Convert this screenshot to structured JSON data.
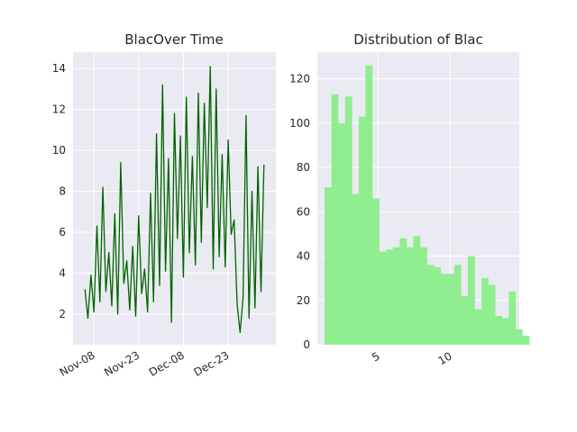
{
  "chart_data": [
    {
      "type": "line",
      "title": "BlacOver Time",
      "xlabel": "",
      "ylabel": "",
      "x_tick_labels": [
        "Nov-08",
        "Nov-23",
        "Dec-08",
        "Dec-23"
      ],
      "x_ticks": [
        "2021-11-08",
        "2021-11-23",
        "2021-12-08",
        "2021-12-23"
      ],
      "x_range": [
        "2021-11-01",
        "2022-01-08"
      ],
      "y_ticks": [
        2,
        4,
        6,
        8,
        10,
        12,
        14
      ],
      "ylim": [
        0.5,
        14.8
      ],
      "grid": true,
      "color": "#006400",
      "series": [
        {
          "x": [
            "2021-11-05",
            "2021-11-06",
            "2021-11-07",
            "2021-11-08",
            "2021-11-09",
            "2021-11-10",
            "2021-11-11",
            "2021-11-12",
            "2021-11-13",
            "2021-11-14",
            "2021-11-15",
            "2021-11-16",
            "2021-11-17",
            "2021-11-18",
            "2021-11-19",
            "2021-11-20",
            "2021-11-21",
            "2021-11-22",
            "2021-11-23",
            "2021-11-24",
            "2021-11-25",
            "2021-11-26",
            "2021-11-27",
            "2021-11-28",
            "2021-11-29",
            "2021-11-30",
            "2021-12-01",
            "2021-12-02",
            "2021-12-03",
            "2021-12-04",
            "2021-12-05",
            "2021-12-06",
            "2021-12-07",
            "2021-12-08",
            "2021-12-09",
            "2021-12-10",
            "2021-12-11",
            "2021-12-12",
            "2021-12-13",
            "2021-12-14",
            "2021-12-15",
            "2021-12-16",
            "2021-12-17",
            "2021-12-18",
            "2021-12-19",
            "2021-12-20",
            "2021-12-21",
            "2021-12-22",
            "2021-12-23",
            "2021-12-24",
            "2021-12-25",
            "2021-12-26",
            "2021-12-27",
            "2021-12-28",
            "2021-12-29",
            "2021-12-30",
            "2021-12-31",
            "2022-01-01",
            "2022-01-02",
            "2022-01-03",
            "2022-01-04"
          ],
          "y": [
            3.2,
            1.8,
            3.9,
            2.1,
            6.3,
            2.6,
            8.2,
            3.1,
            5.0,
            2.4,
            6.9,
            2.0,
            9.4,
            3.5,
            4.6,
            2.2,
            5.3,
            1.9,
            6.8,
            3.0,
            4.2,
            2.1,
            7.9,
            2.6,
            10.8,
            3.4,
            13.2,
            4.1,
            9.6,
            1.6,
            11.8,
            5.7,
            10.7,
            3.8,
            12.6,
            5.0,
            9.7,
            4.4,
            12.8,
            5.5,
            12.3,
            7.2,
            14.1,
            4.2,
            13.0,
            4.8,
            9.8,
            4.3,
            10.5,
            5.9,
            6.6,
            2.5,
            1.1,
            2.8,
            11.7,
            1.8,
            8.0,
            2.3,
            9.2,
            3.1,
            9.3
          ]
        }
      ]
    },
    {
      "type": "bar",
      "title": "Distribution of Blac",
      "xlabel": "",
      "ylabel": "",
      "x_tick_labels": [
        "5",
        "10"
      ],
      "x_ticks": [
        5,
        10
      ],
      "xlim": [
        0.8,
        14.8
      ],
      "y_ticks": [
        0,
        20,
        40,
        60,
        80,
        100,
        120
      ],
      "ylim": [
        0,
        132
      ],
      "grid": true,
      "color": "#90ee90",
      "bin_start": 1.3,
      "bin_width": 0.473,
      "counts": [
        71,
        113,
        100,
        112,
        68,
        103,
        126,
        66,
        42,
        43,
        44,
        48,
        44,
        49,
        44,
        36,
        35,
        32,
        32,
        36,
        22,
        40,
        16,
        30,
        27,
        13,
        12,
        24,
        7,
        4
      ]
    }
  ]
}
